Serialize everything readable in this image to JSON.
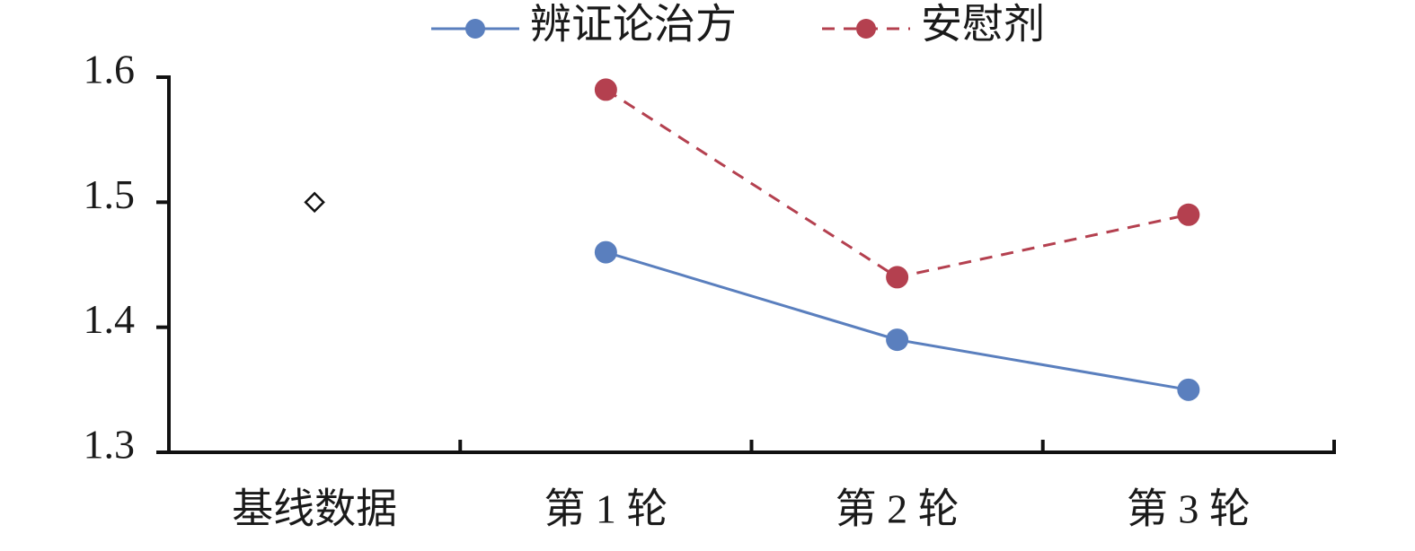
{
  "chart_data": {
    "type": "line",
    "categories": [
      "基线数据",
      "第 1 轮",
      "第 2 轮",
      "第 3 轮"
    ],
    "series": [
      {
        "name": "辨证论治方",
        "color": "#5a7fbe",
        "dash": false,
        "values": [
          null,
          1.46,
          1.39,
          1.35
        ]
      },
      {
        "name": "安慰剂",
        "color": "#b4404f",
        "dash": true,
        "values": [
          null,
          1.59,
          1.44,
          1.49
        ]
      }
    ],
    "baseline": 1.5,
    "ylim": [
      1.3,
      1.6
    ],
    "yticks": [
      1.3,
      1.4,
      1.5,
      1.6
    ],
    "grid": false,
    "legend": "top"
  }
}
